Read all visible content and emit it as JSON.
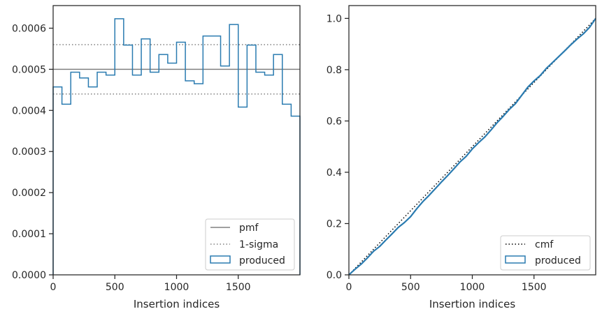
{
  "colors": {
    "produced": "#2a7bb0",
    "pmf": "#808080",
    "sigma": "#808080",
    "cmf": "#000000",
    "axis": "#262626",
    "legend_border": "#cccccc"
  },
  "chart_data": [
    {
      "type": "histogram",
      "xlabel": "Insertion indices",
      "ylabel": "",
      "xlim": [
        0,
        2000
      ],
      "ylim": [
        0,
        0.000655
      ],
      "x_ticks": [
        0,
        500,
        1000,
        1500
      ],
      "x_tick_labels": [
        "0",
        "500",
        "1000",
        "1500"
      ],
      "y_ticks": [
        0,
        0.0001,
        0.0002,
        0.0003,
        0.0004,
        0.0005,
        0.0006
      ],
      "y_tick_labels": [
        "0.0000",
        "0.0001",
        "0.0002",
        "0.0003",
        "0.0004",
        "0.0005",
        "0.0006"
      ],
      "bin_edges": [
        0,
        71.4,
        142.9,
        214.3,
        285.7,
        357.1,
        428.6,
        500,
        571.4,
        642.9,
        714.3,
        785.7,
        857.1,
        928.6,
        1000,
        1071.4,
        1142.9,
        1214.3,
        1285.7,
        1357.1,
        1428.6,
        1500,
        1571.4,
        1642.9,
        1714.3,
        1785.7,
        1857.1,
        1928.6,
        2000
      ],
      "values": [
        0.000457,
        0.000415,
        0.000493,
        0.000479,
        0.000457,
        0.000493,
        0.000486,
        0.000623,
        0.000559,
        0.000486,
        0.000574,
        0.000493,
        0.000536,
        0.000515,
        0.000566,
        0.000472,
        0.000465,
        0.000581,
        0.000581,
        0.000508,
        0.000609,
        0.000408,
        0.000559,
        0.000493,
        0.000486,
        0.000536,
        0.000415,
        0.000386
      ],
      "pmf": 0.0005,
      "sigma_band": [
        0.00044,
        0.00056
      ],
      "legend": [
        "pmf",
        "1-sigma",
        "produced"
      ],
      "legend_position": "lower right"
    },
    {
      "type": "line",
      "xlabel": "Insertion indices",
      "ylabel": "",
      "xlim": [
        0,
        2000
      ],
      "ylim": [
        0,
        1.05
      ],
      "x_ticks": [
        0,
        500,
        1000,
        1500
      ],
      "x_tick_labels": [
        "0",
        "500",
        "1000",
        "1500"
      ],
      "y_ticks": [
        0,
        0.2,
        0.4,
        0.6,
        0.8,
        1.0
      ],
      "y_tick_labels": [
        "0.0",
        "0.2",
        "0.4",
        "0.6",
        "0.8",
        "1.0"
      ],
      "series": [
        {
          "name": "cmf",
          "x": [
            0,
            2000
          ],
          "y": [
            0,
            1.0
          ]
        },
        {
          "name": "produced",
          "x": [
            0,
            50,
            100,
            150,
            200,
            250,
            300,
            350,
            400,
            450,
            500,
            550,
            600,
            650,
            700,
            750,
            800,
            850,
            900,
            950,
            1000,
            1050,
            1100,
            1150,
            1200,
            1250,
            1300,
            1350,
            1400,
            1450,
            1500,
            1550,
            1600,
            1650,
            1700,
            1750,
            1800,
            1850,
            1900,
            1950,
            2000
          ],
          "y": [
            0,
            0.022,
            0.042,
            0.066,
            0.092,
            0.111,
            0.136,
            0.16,
            0.185,
            0.204,
            0.227,
            0.258,
            0.286,
            0.31,
            0.336,
            0.362,
            0.387,
            0.413,
            0.44,
            0.462,
            0.491,
            0.515,
            0.537,
            0.564,
            0.593,
            0.618,
            0.645,
            0.668,
            0.7,
            0.732,
            0.756,
            0.777,
            0.805,
            0.828,
            0.851,
            0.874,
            0.898,
            0.92,
            0.94,
            0.965,
            1.0
          ]
        }
      ],
      "legend": [
        "cmf",
        "produced"
      ],
      "legend_position": "lower right"
    }
  ]
}
